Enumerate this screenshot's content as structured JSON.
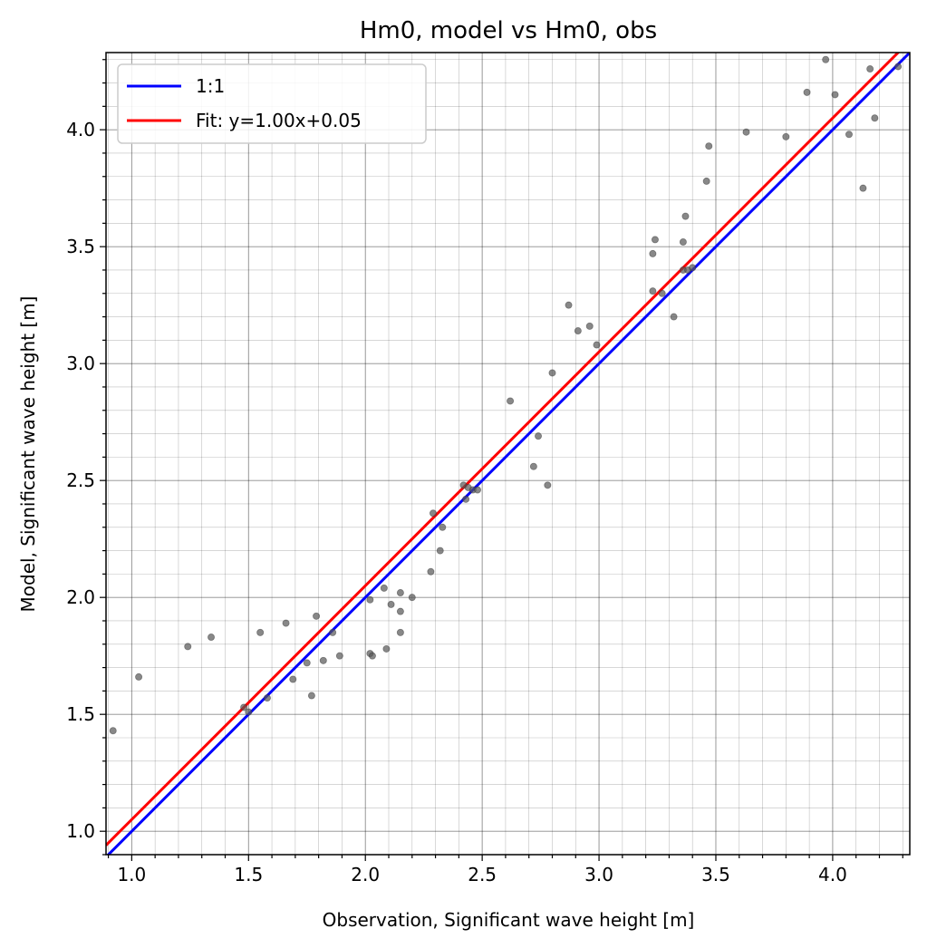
{
  "chart_data": {
    "type": "scatter",
    "title": "Hm0, model vs Hm0, obs",
    "xlabel": "Observation, Significant wave height [m]",
    "ylabel": "Model, Significant wave height [m]",
    "xlim": [
      0.89,
      4.33
    ],
    "ylim": [
      0.9,
      4.33
    ],
    "xticks": [
      1.0,
      1.5,
      2.0,
      2.5,
      3.0,
      3.5,
      4.0
    ],
    "yticks": [
      1.0,
      1.5,
      2.0,
      2.5,
      3.0,
      3.5,
      4.0
    ],
    "grid": true,
    "legend_position": "top-left",
    "series": [
      {
        "name": "1:1",
        "kind": "line",
        "color": "#0000ff",
        "slope": 1.0,
        "intercept": 0.0
      },
      {
        "name": "Fit: y=1.00x+0.05",
        "kind": "line",
        "color": "#ff0000",
        "slope": 1.0,
        "intercept": 0.05
      },
      {
        "kind": "scatter",
        "color": "#555555",
        "points": [
          [
            0.92,
            1.43
          ],
          [
            1.03,
            1.66
          ],
          [
            1.24,
            1.79
          ],
          [
            1.34,
            1.83
          ],
          [
            1.48,
            1.53
          ],
          [
            1.5,
            1.51
          ],
          [
            1.55,
            1.85
          ],
          [
            1.58,
            1.57
          ],
          [
            1.66,
            1.89
          ],
          [
            1.69,
            1.65
          ],
          [
            1.75,
            1.72
          ],
          [
            1.77,
            1.58
          ],
          [
            1.79,
            1.92
          ],
          [
            1.82,
            1.73
          ],
          [
            1.86,
            1.85
          ],
          [
            1.89,
            1.75
          ],
          [
            2.02,
            1.99
          ],
          [
            2.02,
            1.76
          ],
          [
            2.03,
            1.75
          ],
          [
            2.08,
            2.04
          ],
          [
            2.09,
            1.78
          ],
          [
            2.11,
            1.97
          ],
          [
            2.15,
            1.85
          ],
          [
            2.15,
            2.02
          ],
          [
            2.15,
            1.94
          ],
          [
            2.2,
            2.0
          ],
          [
            2.28,
            2.11
          ],
          [
            2.29,
            2.36
          ],
          [
            2.32,
            2.2
          ],
          [
            2.33,
            2.3
          ],
          [
            2.42,
            2.48
          ],
          [
            2.43,
            2.42
          ],
          [
            2.44,
            2.47
          ],
          [
            2.46,
            2.46
          ],
          [
            2.48,
            2.46
          ],
          [
            2.62,
            2.84
          ],
          [
            2.72,
            2.56
          ],
          [
            2.74,
            2.69
          ],
          [
            2.78,
            2.48
          ],
          [
            2.8,
            2.96
          ],
          [
            2.87,
            3.25
          ],
          [
            2.91,
            3.14
          ],
          [
            2.96,
            3.16
          ],
          [
            2.99,
            3.08
          ],
          [
            3.23,
            3.47
          ],
          [
            3.23,
            3.31
          ],
          [
            3.24,
            3.53
          ],
          [
            3.27,
            3.3
          ],
          [
            3.32,
            3.2
          ],
          [
            3.36,
            3.4
          ],
          [
            3.37,
            3.63
          ],
          [
            3.38,
            3.4
          ],
          [
            3.4,
            3.41
          ],
          [
            3.36,
            3.52
          ],
          [
            3.46,
            3.78
          ],
          [
            3.47,
            3.93
          ],
          [
            3.63,
            3.99
          ],
          [
            3.8,
            3.97
          ],
          [
            3.89,
            4.16
          ],
          [
            3.97,
            4.3
          ],
          [
            4.01,
            4.15
          ],
          [
            4.07,
            3.98
          ],
          [
            4.13,
            3.75
          ],
          [
            4.18,
            4.05
          ],
          [
            4.16,
            4.26
          ],
          [
            4.28,
            4.27
          ]
        ]
      }
    ]
  }
}
